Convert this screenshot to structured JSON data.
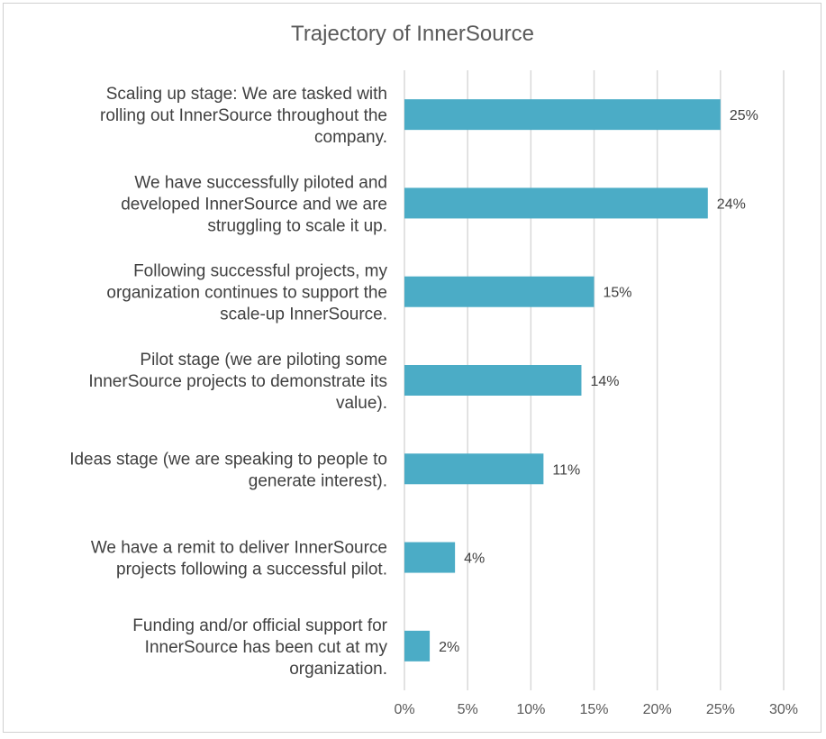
{
  "chart_data": {
    "type": "bar",
    "orientation": "horizontal",
    "title": "Trajectory of InnerSource",
    "xlabel": "",
    "ylabel": "",
    "xlim": [
      0,
      30
    ],
    "x_ticks": [
      "0%",
      "5%",
      "10%",
      "15%",
      "20%",
      "25%",
      "30%"
    ],
    "grid": "vertical",
    "legend": "none",
    "bar_color": "#4BACC6",
    "categories": [
      "Scaling up stage: We are tasked with rolling out InnerSource throughout the company.",
      "We have successfully piloted and developed InnerSource and we are struggling to scale it up.",
      "Following successful projects, my organization continues to support the scale-up InnerSource.",
      "Pilot stage (we are piloting some InnerSource projects to demonstrate its value).",
      "Ideas stage (we are speaking to people to generate interest).",
      "We have a remit to deliver InnerSource projects following a successful pilot.",
      "Funding and/or official support for InnerSource has been cut at my organization."
    ],
    "category_lines": [
      [
        "Scaling up stage: We are tasked with",
        "rolling out InnerSource throughout the",
        "company."
      ],
      [
        "We have successfully piloted and",
        "developed InnerSource and we are",
        "struggling to scale it up."
      ],
      [
        "Following successful projects, my",
        "organization continues to support the",
        "scale-up InnerSource."
      ],
      [
        "Pilot stage (we are piloting some",
        "InnerSource projects to demonstrate its",
        "value)."
      ],
      [
        "Ideas stage (we are speaking to people to",
        "generate interest)."
      ],
      [
        "We have a remit to deliver InnerSource",
        "projects following a successful pilot."
      ],
      [
        "Funding and/or official support for",
        "InnerSource has been cut at my",
        "organization."
      ]
    ],
    "values": [
      25,
      24,
      15,
      14,
      11,
      4,
      2
    ],
    "value_labels": [
      "25%",
      "24%",
      "15%",
      "14%",
      "11%",
      "4%",
      "2%"
    ]
  }
}
